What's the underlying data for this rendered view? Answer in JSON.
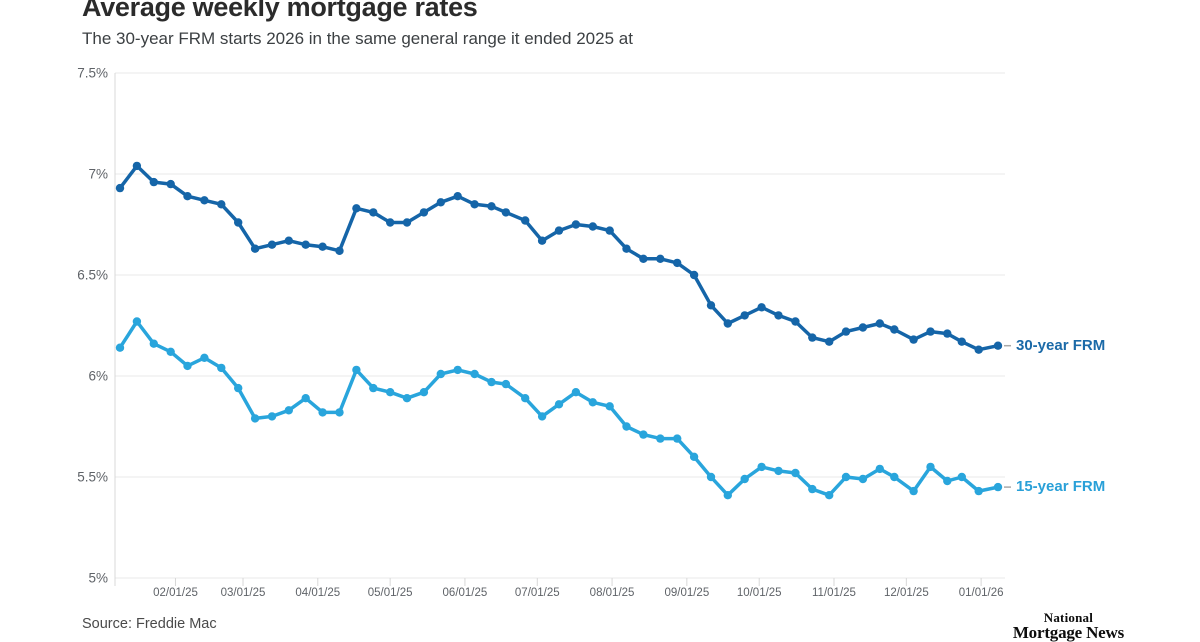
{
  "page": {
    "title": "Average weekly mortgage rates",
    "subtitle": "The 30-year FRM starts 2026 in the same general range it ended 2025 at",
    "source": "Source: Freddie Mac",
    "logo": {
      "line1": "National",
      "line2": "Mortgage News"
    }
  },
  "chart_data": {
    "type": "line",
    "title": "Average weekly mortgage rates",
    "subtitle": "The 30-year FRM starts 2026 in the same general range it ended 2025 at",
    "grid": "horizontal",
    "legend_position": "right-end-labels",
    "ylim": [
      5.0,
      7.5
    ],
    "y_ticks": [
      {
        "value": 7.5,
        "label": "7.5%"
      },
      {
        "value": 7.0,
        "label": "7%"
      },
      {
        "value": 6.5,
        "label": "6.5%"
      },
      {
        "value": 6.0,
        "label": "6%"
      },
      {
        "value": 5.5,
        "label": "5.5%"
      },
      {
        "value": 5.0,
        "label": "5%"
      }
    ],
    "x_ticks": [
      {
        "date": "2025-02-01",
        "label": "02/01/25"
      },
      {
        "date": "2025-03-01",
        "label": "03/01/25"
      },
      {
        "date": "2025-04-01",
        "label": "04/01/25"
      },
      {
        "date": "2025-05-01",
        "label": "05/01/25"
      },
      {
        "date": "2025-06-01",
        "label": "06/01/25"
      },
      {
        "date": "2025-07-01",
        "label": "07/01/25"
      },
      {
        "date": "2025-08-01",
        "label": "08/01/25"
      },
      {
        "date": "2025-09-01",
        "label": "09/01/25"
      },
      {
        "date": "2025-10-01",
        "label": "10/01/25"
      },
      {
        "date": "2025-11-01",
        "label": "11/01/25"
      },
      {
        "date": "2025-12-01",
        "label": "12/01/25"
      },
      {
        "date": "2026-01-01",
        "label": "01/01/26"
      }
    ],
    "x": [
      "2025-01-09",
      "2025-01-16",
      "2025-01-23",
      "2025-01-30",
      "2025-02-06",
      "2025-02-13",
      "2025-02-20",
      "2025-02-27",
      "2025-03-06",
      "2025-03-13",
      "2025-03-20",
      "2025-03-27",
      "2025-04-03",
      "2025-04-10",
      "2025-04-17",
      "2025-04-24",
      "2025-05-01",
      "2025-05-08",
      "2025-05-15",
      "2025-05-22",
      "2025-05-29",
      "2025-06-05",
      "2025-06-12",
      "2025-06-18",
      "2025-06-26",
      "2025-07-03",
      "2025-07-10",
      "2025-07-17",
      "2025-07-24",
      "2025-07-31",
      "2025-08-07",
      "2025-08-14",
      "2025-08-21",
      "2025-08-28",
      "2025-09-04",
      "2025-09-11",
      "2025-09-18",
      "2025-09-25",
      "2025-10-02",
      "2025-10-09",
      "2025-10-16",
      "2025-10-23",
      "2025-10-30",
      "2025-11-06",
      "2025-11-13",
      "2025-11-20",
      "2025-11-26",
      "2025-12-04",
      "2025-12-11",
      "2025-12-18",
      "2025-12-24",
      "2025-12-31",
      "2026-01-08"
    ],
    "series": [
      {
        "name": "30-year FRM",
        "color": "#1565a8",
        "values": [
          6.93,
          7.04,
          6.96,
          6.95,
          6.89,
          6.87,
          6.85,
          6.76,
          6.63,
          6.65,
          6.67,
          6.65,
          6.64,
          6.62,
          6.83,
          6.81,
          6.76,
          6.76,
          6.81,
          6.86,
          6.89,
          6.85,
          6.84,
          6.81,
          6.77,
          6.67,
          6.72,
          6.75,
          6.74,
          6.72,
          6.63,
          6.58,
          6.58,
          6.56,
          6.5,
          6.35,
          6.26,
          6.3,
          6.34,
          6.3,
          6.27,
          6.19,
          6.17,
          6.22,
          6.24,
          6.26,
          6.23,
          6.18,
          6.22,
          6.21,
          6.17,
          6.13,
          6.15
        ]
      },
      {
        "name": "15-year FRM",
        "color": "#29a5dc",
        "values": [
          6.14,
          6.27,
          6.16,
          6.12,
          6.05,
          6.09,
          6.04,
          5.94,
          5.79,
          5.8,
          5.83,
          5.89,
          5.82,
          5.82,
          6.03,
          5.94,
          5.92,
          5.89,
          5.92,
          6.01,
          6.03,
          6.01,
          5.97,
          5.96,
          5.89,
          5.8,
          5.86,
          5.92,
          5.87,
          5.85,
          5.75,
          5.71,
          5.69,
          5.69,
          5.6,
          5.5,
          5.41,
          5.49,
          5.55,
          5.53,
          5.52,
          5.44,
          5.41,
          5.5,
          5.49,
          5.54,
          5.5,
          5.43,
          5.55,
          5.48,
          5.5,
          5.43,
          5.45
        ]
      }
    ]
  }
}
